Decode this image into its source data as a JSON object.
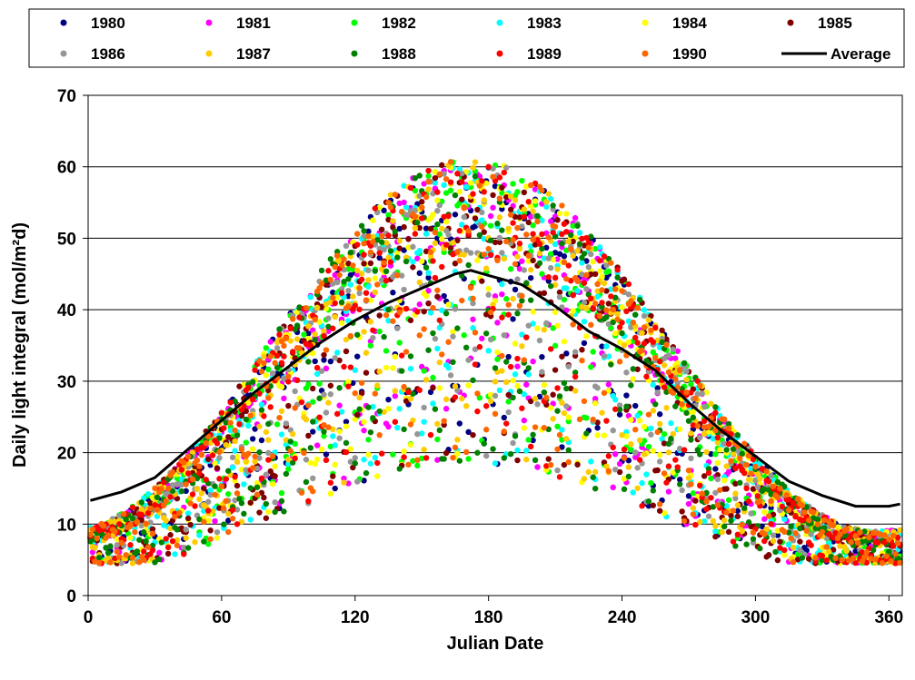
{
  "chart_data": {
    "type": "scatter",
    "title": "",
    "xlabel": "Julian Date",
    "ylabel": "Daily  light integral (mol/m²d)",
    "xlim": [
      0,
      366
    ],
    "ylim": [
      0,
      70
    ],
    "xticks": [
      "0",
      "60",
      "120",
      "180",
      "240",
      "300",
      "360"
    ],
    "yticks": [
      "0",
      "10",
      "20",
      "30",
      "40",
      "50",
      "60",
      "70"
    ],
    "grid": "horizontal",
    "legend_position": "top",
    "series": [
      {
        "name": "1980",
        "color": "#000080",
        "seed": 11
      },
      {
        "name": "1981",
        "color": "#ff00ff",
        "seed": 23
      },
      {
        "name": "1982",
        "color": "#00ff00",
        "seed": 37
      },
      {
        "name": "1983",
        "color": "#00ffff",
        "seed": 41
      },
      {
        "name": "1984",
        "color": "#ffff00",
        "seed": 53
      },
      {
        "name": "1985",
        "color": "#800000",
        "seed": 67
      },
      {
        "name": "1986",
        "color": "#969696",
        "seed": 71
      },
      {
        "name": "1987",
        "color": "#ffcc00",
        "seed": 83
      },
      {
        "name": "1988",
        "color": "#008000",
        "seed": 97
      },
      {
        "name": "1989",
        "color": "#ff0000",
        "seed": 101
      },
      {
        "name": "1990",
        "color": "#ff6600",
        "seed": 113
      }
    ],
    "average": {
      "name": "Average",
      "color": "#000000",
      "x": [
        1,
        15,
        30,
        45,
        60,
        75,
        90,
        105,
        120,
        135,
        150,
        165,
        172,
        180,
        195,
        210,
        225,
        240,
        255,
        270,
        285,
        300,
        315,
        330,
        345,
        360,
        365
      ],
      "y": [
        13.3,
        14.5,
        16.5,
        20.5,
        24.5,
        28.5,
        32,
        35.5,
        38.5,
        41,
        43,
        45,
        45.5,
        44.8,
        43.5,
        40.5,
        37,
        34.5,
        31.5,
        27,
        23,
        19.5,
        16,
        14,
        12.5,
        12.5,
        12.8
      ]
    }
  }
}
